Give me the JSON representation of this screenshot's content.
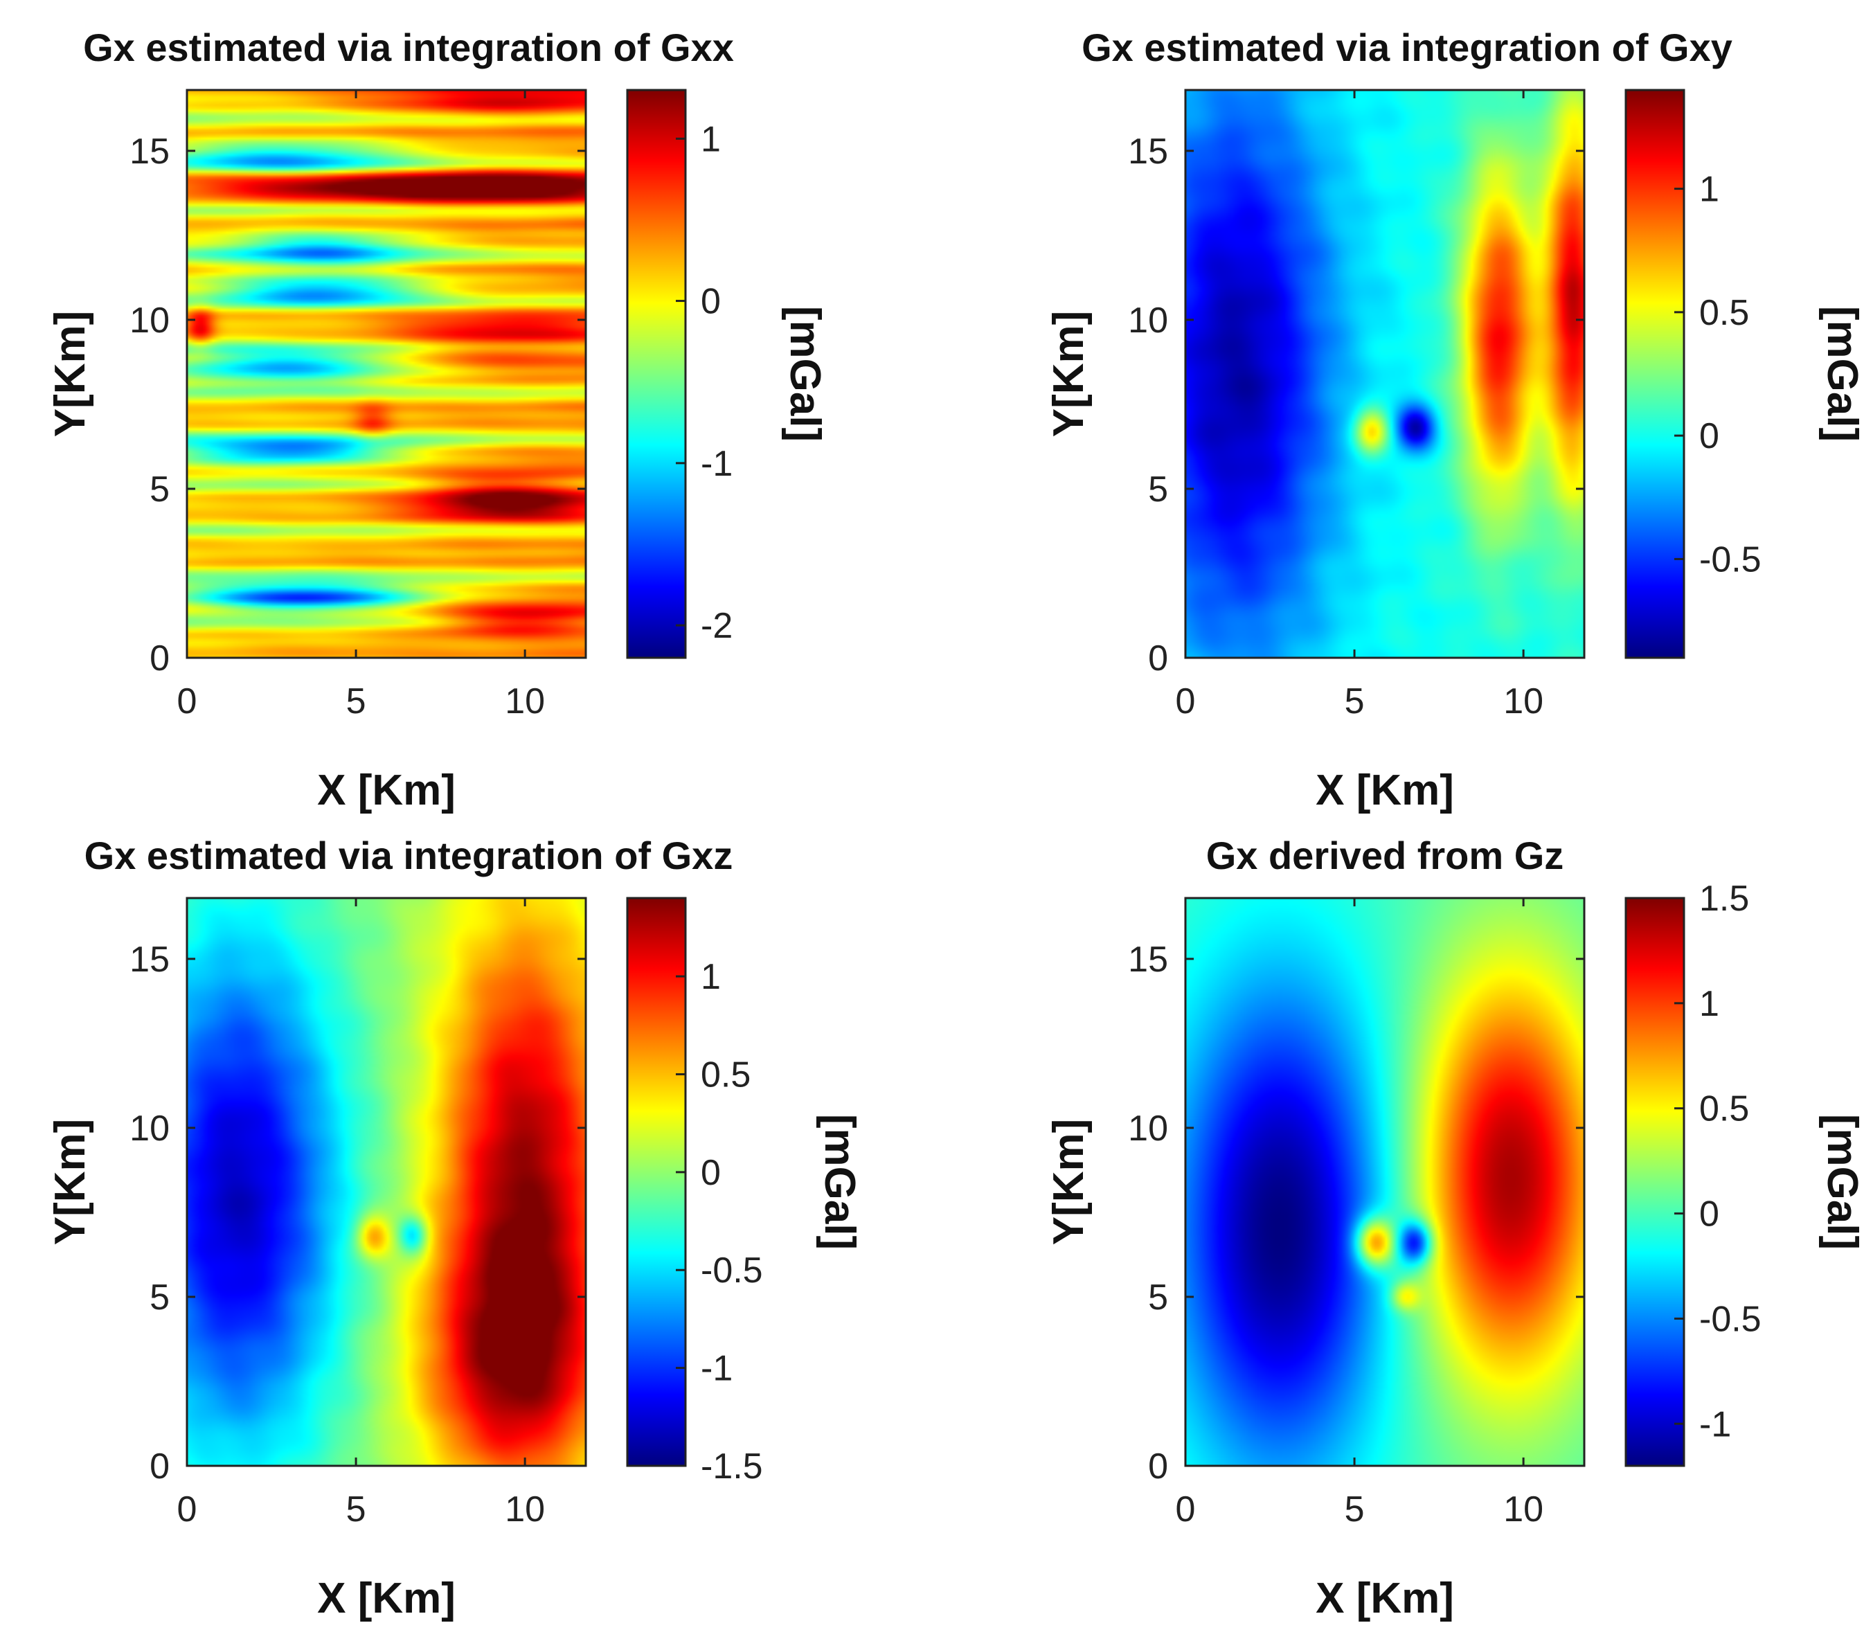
{
  "colors": {
    "jet": [
      "#00007f",
      "#0000ff",
      "#007fff",
      "#00ffff",
      "#7fff7f",
      "#ffff00",
      "#ff7f00",
      "#ff0000",
      "#7f0000"
    ],
    "axis": "#222222",
    "background": "#ffffff"
  },
  "chart_data": [
    {
      "type": "heatmap",
      "title": "Gx estimated via integration of Gxx",
      "xlabel": "X [Km]",
      "ylabel": "Y[Km]",
      "xlim": [
        0,
        11.8
      ],
      "ylim": [
        0,
        16.8
      ],
      "xticks": [
        0,
        5,
        10
      ],
      "yticks": [
        0,
        5,
        10,
        15
      ],
      "colorbar": {
        "label": "[mGal]",
        "range": [
          -2.2,
          1.3
        ],
        "ticks": [
          -2,
          -1,
          0,
          1
        ]
      },
      "pattern": "horizontal bands alternating positive and negative, strongest positive on the right side",
      "features": [
        {
          "x": 9.5,
          "y": 13.9,
          "value": 1.2,
          "sx": 3.0,
          "sy": 0.35
        },
        {
          "x": 4.0,
          "y": 13.9,
          "value": 0.9,
          "sx": 3.5,
          "sy": 0.3
        },
        {
          "x": 9.5,
          "y": 16.5,
          "value": 0.8,
          "sx": 3.0,
          "sy": 0.35
        },
        {
          "x": 3.0,
          "y": 14.8,
          "value": -1.1,
          "sx": 2.5,
          "sy": 0.35
        },
        {
          "x": 4.0,
          "y": 12.1,
          "value": -1.2,
          "sx": 2.0,
          "sy": 0.35
        },
        {
          "x": 4.0,
          "y": 10.9,
          "value": -1.3,
          "sx": 2.2,
          "sy": 0.35
        },
        {
          "x": 9.5,
          "y": 9.5,
          "value": 0.7,
          "sx": 2.5,
          "sy": 0.5
        },
        {
          "x": 3.0,
          "y": 8.6,
          "value": -1.4,
          "sx": 2.5,
          "sy": 0.35
        },
        {
          "x": 5.5,
          "y": 7.0,
          "value": 0.5,
          "sx": 0.4,
          "sy": 0.4
        },
        {
          "x": 3.0,
          "y": 6.1,
          "value": -1.5,
          "sx": 2.5,
          "sy": 0.3
        },
        {
          "x": 9.5,
          "y": 4.7,
          "value": 1.2,
          "sx": 2.0,
          "sy": 0.5
        },
        {
          "x": 3.5,
          "y": 1.8,
          "value": -1.8,
          "sx": 2.5,
          "sy": 0.3
        },
        {
          "x": 10.0,
          "y": 1.1,
          "value": 1.0,
          "sx": 2.0,
          "sy": 0.3
        },
        {
          "x": 0.4,
          "y": 9.8,
          "value": 0.8,
          "sx": 0.3,
          "sy": 0.4
        }
      ]
    },
    {
      "type": "heatmap",
      "title": "Gx estimated via integration of Gxy",
      "xlabel": "X [Km]",
      "ylabel": "Y[Km]",
      "xlim": [
        0,
        11.8
      ],
      "ylim": [
        0,
        16.8
      ],
      "xticks": [
        0,
        5,
        10
      ],
      "yticks": [
        0,
        5,
        10,
        15
      ],
      "colorbar": {
        "label": "[mGal]",
        "range": [
          -0.9,
          1.4
        ],
        "ticks": [
          -0.5,
          0,
          0.5,
          1
        ]
      },
      "pattern": "negative on the left, positive on the right, dipole near x=6",
      "features": [
        {
          "x": 1.5,
          "y": 8.5,
          "value": -0.8,
          "sx": 2.0,
          "sy": 6.0
        },
        {
          "x": 9.3,
          "y": 9.5,
          "value": 1.1,
          "sx": 0.8,
          "sy": 3.5
        },
        {
          "x": 11.5,
          "y": 10.5,
          "value": 1.2,
          "sx": 0.6,
          "sy": 4.0
        },
        {
          "x": 5.5,
          "y": 6.7,
          "value": 0.7,
          "sx": 0.35,
          "sy": 0.5
        },
        {
          "x": 6.8,
          "y": 6.8,
          "value": -0.8,
          "sx": 0.4,
          "sy": 0.45
        }
      ]
    },
    {
      "type": "heatmap",
      "title": "Gx estimated via integration of Gxz",
      "xlabel": "X [Km]",
      "ylabel": "Y[Km]",
      "xlim": [
        0,
        11.8
      ],
      "ylim": [
        0,
        16.8
      ],
      "xticks": [
        0,
        5,
        10
      ],
      "yticks": [
        0,
        5,
        10,
        15
      ],
      "colorbar": {
        "label": "[mGal]",
        "range": [
          -1.5,
          1.4
        ],
        "ticks": [
          -1.5,
          -1,
          -0.5,
          0,
          0.5,
          1
        ]
      },
      "pattern": "broad negative lobe on the left, broad positive lobe on the right, small dipole near x=6",
      "features": [
        {
          "x": 1.5,
          "y": 8.0,
          "value": -1.3,
          "sx": 2.2,
          "sy": 5.5
        },
        {
          "x": 10.0,
          "y": 8.5,
          "value": 1.3,
          "sx": 1.8,
          "sy": 5.5
        },
        {
          "x": 9.5,
          "y": 3.0,
          "value": 0.8,
          "sx": 2.0,
          "sy": 2.5
        },
        {
          "x": 5.5,
          "y": 6.8,
          "value": 0.7,
          "sx": 0.35,
          "sy": 0.45
        },
        {
          "x": 6.7,
          "y": 6.8,
          "value": -0.7,
          "sx": 0.3,
          "sy": 0.4
        }
      ]
    },
    {
      "type": "heatmap",
      "title": "Gx derived from Gz",
      "xlabel": "X [Km]",
      "ylabel": "Y[Km]",
      "xlim": [
        0,
        11.8
      ],
      "ylim": [
        0,
        16.8
      ],
      "xticks": [
        0,
        5,
        10
      ],
      "yticks": [
        0,
        5,
        10,
        15
      ],
      "colorbar": {
        "label": "[mGal]",
        "range": [
          -1.2,
          1.5
        ],
        "ticks": [
          -1,
          -0.5,
          0,
          0.5,
          1,
          1.5
        ]
      },
      "pattern": "smooth negative lobe centred near x=3, smooth positive lobe centred near x=9.5, dipole near x=6",
      "features": [
        {
          "x": 2.8,
          "y": 7.0,
          "value": -1.2,
          "sx": 2.2,
          "sy": 5.0
        },
        {
          "x": 9.6,
          "y": 8.5,
          "value": 1.4,
          "sx": 1.9,
          "sy": 4.2
        },
        {
          "x": 5.6,
          "y": 6.6,
          "value": 1.1,
          "sx": 0.4,
          "sy": 0.5
        },
        {
          "x": 6.8,
          "y": 6.6,
          "value": -1.0,
          "sx": 0.35,
          "sy": 0.45
        },
        {
          "x": 6.5,
          "y": 5.0,
          "value": 0.5,
          "sx": 0.3,
          "sy": 0.3
        }
      ]
    }
  ]
}
